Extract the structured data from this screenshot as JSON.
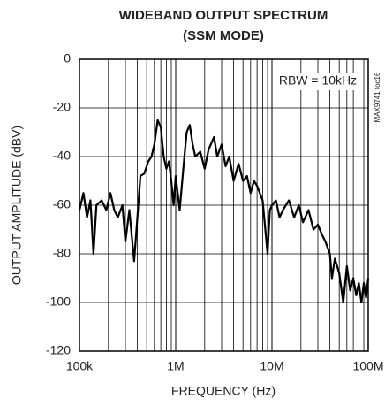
{
  "chart_data": {
    "type": "line",
    "title": [
      "WIDEBAND OUTPUT SPECTRUM",
      "(SSM MODE)"
    ],
    "xlabel": "FREQUENCY (Hz)",
    "ylabel": "OUTPUT AMPLITUDE (dBV)",
    "annotations": [
      "RBW = 10kHz",
      "MAX9741 toc16"
    ],
    "xscale": "log",
    "grid": true,
    "color": "#000000",
    "xlim": [
      100000,
      100000000
    ],
    "xticks": [
      {
        "value": 100000,
        "label": "100k"
      },
      {
        "value": 1000000,
        "label": "1M"
      },
      {
        "value": 10000000,
        "label": "10M"
      },
      {
        "value": 100000000,
        "label": "100M"
      }
    ],
    "ylim": [
      -120,
      0
    ],
    "yticks": [
      0,
      -20,
      -40,
      -60,
      -80,
      -100,
      -120
    ],
    "x": [
      100000,
      110000,
      120000,
      130000,
      140000,
      150000,
      170000,
      190000,
      210000,
      230000,
      250000,
      280000,
      300000,
      330000,
      370000,
      400000,
      430000,
      470000,
      520000,
      560000,
      600000,
      650000,
      700000,
      750000,
      800000,
      850000,
      900000,
      950000,
      1000000,
      1100000,
      1200000,
      1300000,
      1400000,
      1500000,
      1600000,
      1800000,
      2000000,
      2200000,
      2500000,
      2700000,
      3000000,
      3300000,
      3600000,
      4000000,
      4500000,
      5000000,
      5500000,
      6000000,
      6500000,
      7000000,
      8000000,
      9000000,
      9500000,
      10000000,
      11000000,
      12000000,
      13000000,
      15000000,
      17000000,
      19000000,
      21000000,
      24000000,
      27000000,
      30000000,
      33000000,
      36000000,
      40000000,
      42000000,
      45000000,
      50000000,
      55000000,
      60000000,
      65000000,
      70000000,
      75000000,
      80000000,
      85000000,
      90000000,
      95000000,
      100000000
    ],
    "values": [
      -62,
      -55,
      -65,
      -58,
      -80,
      -60,
      -58,
      -62,
      -55,
      -62,
      -65,
      -60,
      -75,
      -62,
      -83,
      -65,
      -48,
      -47,
      -42,
      -40,
      -35,
      -25,
      -28,
      -40,
      -45,
      -42,
      -50,
      -60,
      -48,
      -62,
      -45,
      -30,
      -27,
      -35,
      -40,
      -38,
      -45,
      -37,
      -32,
      -40,
      -35,
      -44,
      -40,
      -50,
      -43,
      -50,
      -48,
      -55,
      -50,
      -52,
      -58,
      -80,
      -62,
      -60,
      -58,
      -65,
      -62,
      -58,
      -65,
      -60,
      -67,
      -62,
      -70,
      -68,
      -72,
      -75,
      -80,
      -90,
      -82,
      -88,
      -100,
      -85,
      -95,
      -90,
      -97,
      -92,
      -100,
      -92,
      -98,
      -90
    ]
  }
}
